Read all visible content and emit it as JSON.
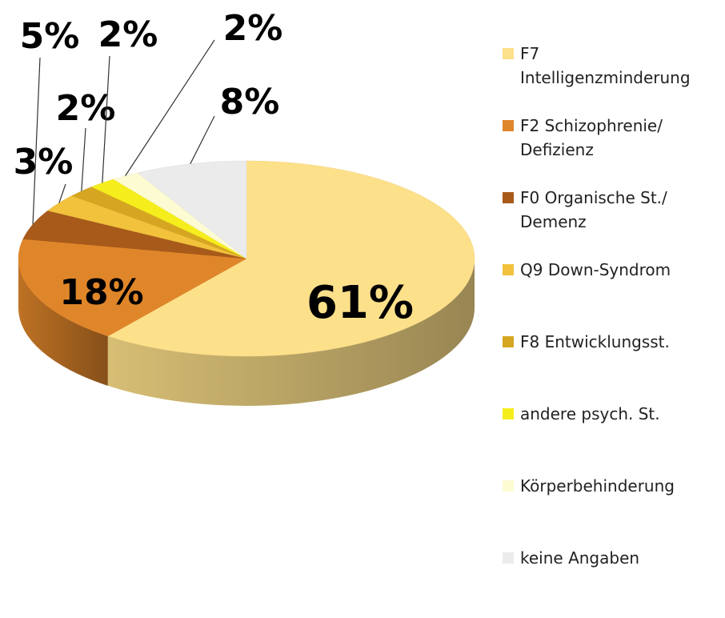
{
  "chart_data": {
    "type": "pie",
    "categories": [
      "F7 Intelligenzminderung",
      "F2 Schizophrenie/ Defizienz",
      "F0 Organische St./ Demenz",
      "Q9 Down-Syndrom",
      "F8 Entwicklungsst.",
      "andere psych. St.",
      "Körperbehinderung",
      "keine Angaben"
    ],
    "values": [
      61,
      18,
      5,
      3,
      2,
      2,
      2,
      8
    ],
    "value_labels": [
      "61%",
      "18%",
      "5%",
      "3%",
      "2%",
      "2%",
      "2%",
      "8%"
    ],
    "colors": [
      "#fde08a",
      "#e0862a",
      "#a85a1a",
      "#f2c23c",
      "#d6a622",
      "#f6ee1c",
      "#fdfbd2",
      "#ebebeb"
    ],
    "legend": "right"
  }
}
